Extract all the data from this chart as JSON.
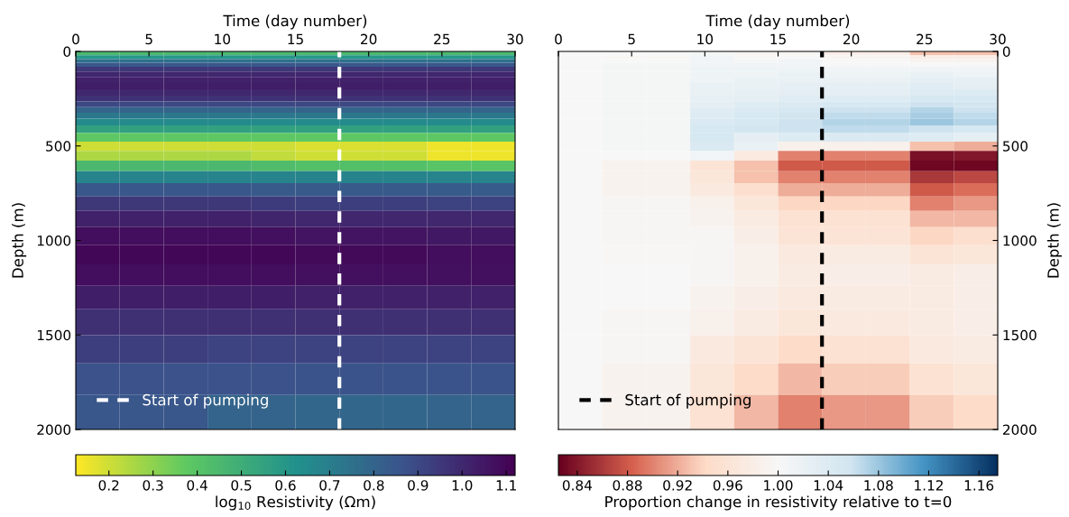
{
  "chart_data": [
    {
      "type": "heatmap",
      "xlabel": "Time (day number)",
      "ylabel": "Depth (m)",
      "clabel": "log$_{10}$ Resistivity (Ωm)",
      "x": [
        1.5,
        4.5,
        7.5,
        10.5,
        13.5,
        16.5,
        19.5,
        22.5,
        25.5,
        28.5
      ],
      "y": [
        10,
        30,
        50,
        70,
        92,
        120,
        150,
        183,
        217,
        250,
        280,
        309,
        340,
        372,
        411,
        453,
        501,
        551,
        603,
        664,
        730,
        804,
        884,
        975,
        1074,
        1180,
        1299,
        1430,
        1572,
        1728,
        1906
      ],
      "xlim": [
        0,
        30
      ],
      "ylim": [
        2000,
        0
      ],
      "xticks": [
        0,
        5,
        10,
        15,
        20,
        25,
        30
      ],
      "yticks": [
        0,
        500,
        1000,
        1500,
        2000
      ],
      "clim": [
        0.125,
        1.12
      ],
      "cticks": [
        0.2,
        0.3,
        0.4,
        0.5,
        0.6,
        0.7,
        0.8,
        0.9,
        {
          "value": 1.0,
          "label": "1.0"
        },
        1.1
      ],
      "colors": [
        "#fde725",
        "#5ec962",
        "#21918c",
        "#3b528b",
        "#440154"
      ],
      "ref_lines": [
        {
          "axis": "x",
          "value": 18,
          "label": "Start of pumping",
          "color": "#ffffff",
          "line_style": "dashed"
        }
      ],
      "legend": "bottom left",
      "cells": [
        [
          0.45,
          0.45,
          0.45,
          0.45,
          0.45,
          0.45,
          0.45,
          0.45,
          0.45,
          0.45
        ],
        [
          0.6,
          0.6,
          0.6,
          0.6,
          0.6,
          0.6,
          0.6,
          0.6,
          0.6,
          0.6
        ],
        [
          0.75,
          0.75,
          0.75,
          0.75,
          0.75,
          0.75,
          0.75,
          0.75,
          0.75,
          0.75
        ],
        [
          0.85,
          0.85,
          0.85,
          0.85,
          0.85,
          0.85,
          0.85,
          0.85,
          0.85,
          0.85
        ],
        [
          0.95,
          0.95,
          0.95,
          0.95,
          0.95,
          0.95,
          0.95,
          0.95,
          0.95,
          0.95
        ],
        [
          1.0,
          1.0,
          1.0,
          1.0,
          1.0,
          1.0,
          1.0,
          1.0,
          1.0,
          1.0
        ],
        [
          1.02,
          1.02,
          1.02,
          1.02,
          1.02,
          1.02,
          1.02,
          1.02,
          1.02,
          1.02
        ],
        [
          1.03,
          1.03,
          1.03,
          1.03,
          1.03,
          1.03,
          1.03,
          1.03,
          1.03,
          1.03
        ],
        [
          1.0,
          1.0,
          1.0,
          1.0,
          1.0,
          1.0,
          1.0,
          1.0,
          1.0,
          1.0
        ],
        [
          0.97,
          0.97,
          0.97,
          0.97,
          0.97,
          0.97,
          0.97,
          0.97,
          0.97,
          0.97
        ],
        [
          0.9,
          0.9,
          0.9,
          0.9,
          0.9,
          0.9,
          0.9,
          0.9,
          0.9,
          0.9
        ],
        [
          0.8,
          0.8,
          0.8,
          0.8,
          0.8,
          0.8,
          0.8,
          0.8,
          0.8,
          0.8
        ],
        [
          0.72,
          0.72,
          0.72,
          0.72,
          0.72,
          0.72,
          0.72,
          0.72,
          0.72,
          0.72
        ],
        [
          0.65,
          0.65,
          0.65,
          0.65,
          0.65,
          0.65,
          0.65,
          0.65,
          0.65,
          0.65
        ],
        [
          0.55,
          0.55,
          0.55,
          0.55,
          0.55,
          0.55,
          0.55,
          0.55,
          0.55,
          0.55
        ],
        [
          0.38,
          0.38,
          0.38,
          0.38,
          0.38,
          0.38,
          0.38,
          0.38,
          0.38,
          0.38
        ],
        [
          0.2,
          0.2,
          0.2,
          0.2,
          0.2,
          0.18,
          0.18,
          0.18,
          0.15,
          0.15
        ],
        [
          0.25,
          0.25,
          0.25,
          0.25,
          0.22,
          0.2,
          0.2,
          0.2,
          0.15,
          0.15
        ],
        [
          0.45,
          0.45,
          0.45,
          0.45,
          0.43,
          0.42,
          0.42,
          0.42,
          0.4,
          0.4
        ],
        [
          0.68,
          0.68,
          0.68,
          0.68,
          0.68,
          0.68,
          0.68,
          0.68,
          0.68,
          0.68
        ],
        [
          0.85,
          0.85,
          0.85,
          0.85,
          0.84,
          0.84,
          0.84,
          0.84,
          0.83,
          0.83
        ],
        [
          0.95,
          0.95,
          0.95,
          0.95,
          0.94,
          0.93,
          0.93,
          0.93,
          0.92,
          0.92
        ],
        [
          1.02,
          1.02,
          1.02,
          1.02,
          1.01,
          1.0,
          1.0,
          1.0,
          1.0,
          1.0
        ],
        [
          1.08,
          1.08,
          1.08,
          1.08,
          1.07,
          1.06,
          1.06,
          1.06,
          1.05,
          1.05
        ],
        [
          1.1,
          1.1,
          1.1,
          1.1,
          1.1,
          1.09,
          1.09,
          1.09,
          1.08,
          1.08
        ],
        [
          1.08,
          1.08,
          1.08,
          1.08,
          1.08,
          1.07,
          1.07,
          1.07,
          1.07,
          1.07
        ],
        [
          1.03,
          1.03,
          1.03,
          1.03,
          1.03,
          1.02,
          1.02,
          1.02,
          1.02,
          1.02
        ],
        [
          0.98,
          0.98,
          0.98,
          0.98,
          0.98,
          0.98,
          0.98,
          0.98,
          0.98,
          0.98
        ],
        [
          0.93,
          0.93,
          0.93,
          0.92,
          0.92,
          0.92,
          0.92,
          0.92,
          0.92,
          0.92
        ],
        [
          0.87,
          0.87,
          0.87,
          0.87,
          0.87,
          0.86,
          0.86,
          0.86,
          0.86,
          0.86
        ],
        [
          0.85,
          0.85,
          0.85,
          0.8,
          0.8,
          0.79,
          0.79,
          0.79,
          0.8,
          0.8
        ]
      ]
    },
    {
      "type": "heatmap",
      "xlabel": "Time (day number)",
      "ylabel": "Depth (m)",
      "clabel": "Proportion change in resistivity relative to t=0",
      "x": [
        1.5,
        4.5,
        7.5,
        10.5,
        13.5,
        16.5,
        19.5,
        22.5,
        25.5,
        28.5
      ],
      "y": [
        10,
        30,
        50,
        70,
        92,
        120,
        150,
        183,
        217,
        250,
        280,
        309,
        340,
        372,
        411,
        453,
        501,
        551,
        603,
        664,
        730,
        804,
        884,
        975,
        1074,
        1180,
        1299,
        1430,
        1572,
        1728,
        1906
      ],
      "xlim": [
        0,
        30
      ],
      "ylim": [
        2000,
        0
      ],
      "xticks": [
        0,
        5,
        10,
        15,
        20,
        25,
        30
      ],
      "yticks": [
        0,
        500,
        1000,
        1500,
        2000
      ],
      "clim": [
        0.825,
        1.175
      ],
      "cticks": [
        {
          "value": 0.84,
          "label": "0.84"
        },
        {
          "value": 0.88,
          "label": "0.88"
        },
        {
          "value": 0.92,
          "label": "0.92"
        },
        {
          "value": 0.96,
          "label": "0.96"
        },
        {
          "value": 1.0,
          "label": "1.00"
        },
        {
          "value": 1.04,
          "label": "1.04"
        },
        {
          "value": 1.08,
          "label": "1.08"
        },
        {
          "value": 1.12,
          "label": "1.12"
        },
        {
          "value": 1.16,
          "label": "1.16"
        }
      ],
      "colors": [
        "#67001f",
        "#d6604d",
        "#fddbc7",
        "#f7f7f7",
        "#d1e5f0",
        "#4393c3",
        "#053061"
      ],
      "ref_lines": [
        {
          "axis": "x",
          "value": 18,
          "label": "Start of pumping",
          "color": "#000000",
          "line_style": "dashed"
        }
      ],
      "legend": "bottom left",
      "cells": [
        [
          1.0,
          1.0,
          1.0,
          1.005,
          0.995,
          0.995,
          0.98,
          0.98,
          0.93,
          0.93
        ],
        [
          1.0,
          0.998,
          0.998,
          1.01,
          0.998,
          1.0,
          0.995,
          0.995,
          0.98,
          0.98
        ],
        [
          1.0,
          1.0,
          1.0,
          1.01,
          1.005,
          1.01,
          1.0,
          1.0,
          0.99,
          0.99
        ],
        [
          1.0,
          1.005,
          1.005,
          1.01,
          1.01,
          1.01,
          1.0,
          1.0,
          1.0,
          1.0
        ],
        [
          1.0,
          1.005,
          1.005,
          1.015,
          1.015,
          1.015,
          1.01,
          1.01,
          1.01,
          1.01
        ],
        [
          1.0,
          1.005,
          1.005,
          1.015,
          1.015,
          1.02,
          1.015,
          1.015,
          1.02,
          1.015
        ],
        [
          1.0,
          1.005,
          1.005,
          1.015,
          1.02,
          1.02,
          1.02,
          1.02,
          1.03,
          1.025
        ],
        [
          1.0,
          1.005,
          1.005,
          1.02,
          1.02,
          1.025,
          1.025,
          1.025,
          1.035,
          1.03
        ],
        [
          1.0,
          1.005,
          1.005,
          1.02,
          1.025,
          1.03,
          1.03,
          1.03,
          1.04,
          1.04
        ],
        [
          1.0,
          1.005,
          1.005,
          1.025,
          1.03,
          1.035,
          1.04,
          1.04,
          1.05,
          1.05
        ],
        [
          1.0,
          1.005,
          1.005,
          1.03,
          1.04,
          1.045,
          1.05,
          1.05,
          1.06,
          1.055
        ],
        [
          1.0,
          1.005,
          1.005,
          1.035,
          1.045,
          1.05,
          1.06,
          1.06,
          1.07,
          1.06
        ],
        [
          1.0,
          1.005,
          1.005,
          1.04,
          1.05,
          1.055,
          1.065,
          1.065,
          1.075,
          1.065
        ],
        [
          1.0,
          1.005,
          1.005,
          1.045,
          1.05,
          1.06,
          1.07,
          1.07,
          1.08,
          1.07
        ],
        [
          1.0,
          1.005,
          1.005,
          1.05,
          1.055,
          1.06,
          1.065,
          1.065,
          1.06,
          1.05
        ],
        [
          1.0,
          1.005,
          1.005,
          1.05,
          1.03,
          1.04,
          1.045,
          1.045,
          1.04,
          1.03
        ],
        [
          1.0,
          1.005,
          1.005,
          1.045,
          1.02,
          0.985,
          0.985,
          0.985,
          0.93,
          0.92
        ],
        [
          1.0,
          1.0,
          1.0,
          1.01,
          0.97,
          0.9,
          0.9,
          0.9,
          0.835,
          0.84
        ],
        [
          1.0,
          0.99,
          0.99,
          0.96,
          0.93,
          0.88,
          0.88,
          0.88,
          0.83,
          0.83
        ],
        [
          1.0,
          0.99,
          0.99,
          0.965,
          0.93,
          0.9,
          0.9,
          0.9,
          0.86,
          0.87
        ],
        [
          1.0,
          0.99,
          0.99,
          0.97,
          0.95,
          0.92,
          0.92,
          0.92,
          0.88,
          0.89
        ],
        [
          1.0,
          0.995,
          0.995,
          0.985,
          0.965,
          0.94,
          0.94,
          0.94,
          0.9,
          0.91
        ],
        [
          1.0,
          0.995,
          0.995,
          0.99,
          0.975,
          0.955,
          0.955,
          0.955,
          0.925,
          0.925
        ],
        [
          1.0,
          0.995,
          0.995,
          0.995,
          0.98,
          0.96,
          0.96,
          0.96,
          0.94,
          0.95
        ],
        [
          1.0,
          0.998,
          0.998,
          0.995,
          0.985,
          0.97,
          0.975,
          0.975,
          0.96,
          0.965
        ],
        [
          1.0,
          1.0,
          1.0,
          0.995,
          0.985,
          0.975,
          0.98,
          0.98,
          0.975,
          0.98
        ],
        [
          1.0,
          1.0,
          1.0,
          0.99,
          0.98,
          0.97,
          0.975,
          0.975,
          0.975,
          0.98
        ],
        [
          1.0,
          0.995,
          0.995,
          0.985,
          0.975,
          0.965,
          0.97,
          0.97,
          0.975,
          0.98
        ],
        [
          1.0,
          0.995,
          0.995,
          0.97,
          0.96,
          0.945,
          0.955,
          0.955,
          0.97,
          0.975
        ],
        [
          1.0,
          0.99,
          0.99,
          0.965,
          0.945,
          0.925,
          0.935,
          0.935,
          0.955,
          0.965
        ],
        [
          1.0,
          0.99,
          0.99,
          0.955,
          0.925,
          0.9,
          0.91,
          0.91,
          0.935,
          0.945
        ]
      ]
    }
  ]
}
